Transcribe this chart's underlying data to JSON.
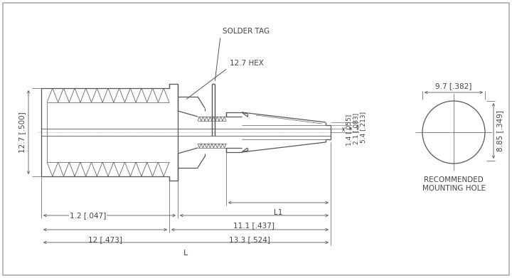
{
  "bg_color": "#ffffff",
  "line_color": "#555555",
  "text_color": "#444444",
  "lw": 0.9,
  "thin_lw": 0.5,
  "labels": {
    "solder_tag": "SOLDER TAG",
    "hex": "12.7 HEX",
    "dim_54": "5.4 [.213]",
    "dim_21": "2.1 [.083]",
    "dim_14": "1.4 [.055]",
    "dim_127h": "12.7 [.500]",
    "dim_12": "12 [.473]",
    "dim_133": "13.3 [.524]",
    "dim_12s": "1.2 [.047]",
    "dim_111": "11.1 [.437]",
    "dim_L1": "L1",
    "dim_L": "L",
    "dim_97": "9.7 [.382]",
    "dim_885": "8.85 [.349]",
    "mounting": "RECOMMENDED\nMOUNTING HOLE"
  }
}
